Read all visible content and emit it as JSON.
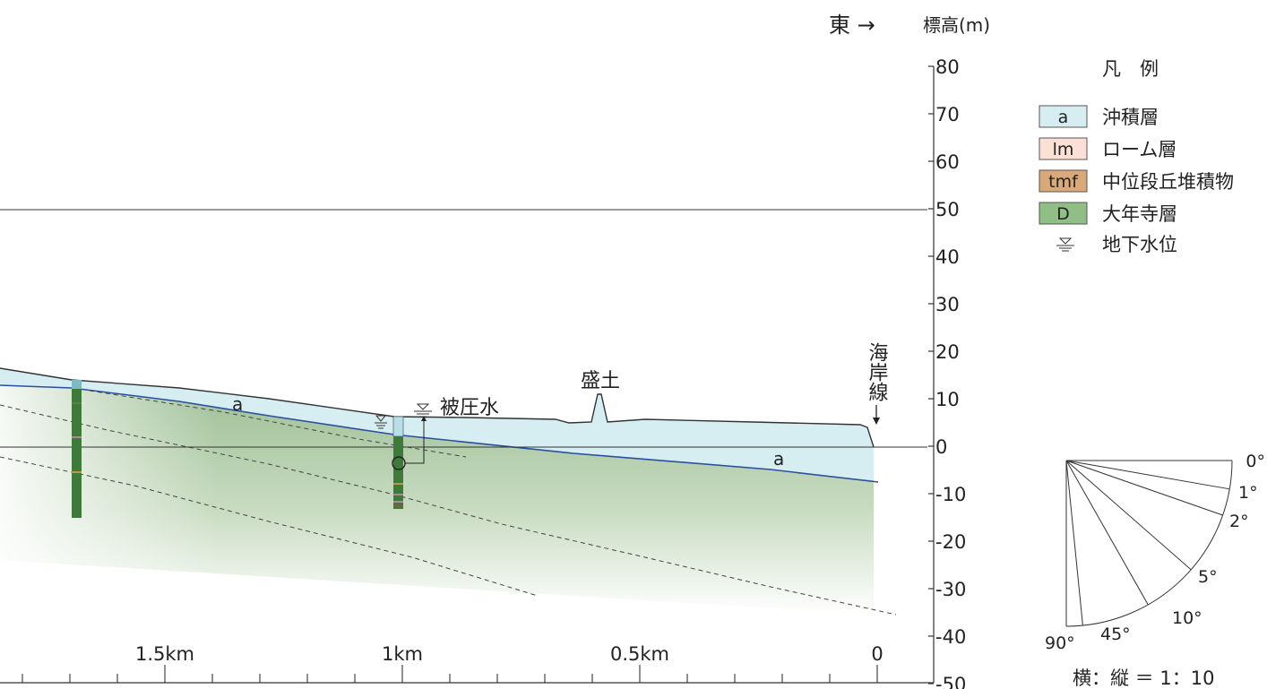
{
  "header": {
    "direction": "東 →",
    "elevation_axis_title": "標高(m)"
  },
  "elevation_axis": {
    "ticks": [
      80,
      70,
      60,
      50,
      40,
      30,
      20,
      10,
      0,
      -10,
      -20,
      -30,
      -40,
      -50
    ]
  },
  "distance_axis": {
    "labels": [
      {
        "value": 1.5,
        "text": "1.5km"
      },
      {
        "value": 1.0,
        "text": "1km"
      },
      {
        "value": 0.5,
        "text": "0.5km"
      },
      {
        "value": 0,
        "text": "0"
      }
    ]
  },
  "legend": {
    "title": "凡　例",
    "items": [
      {
        "code": "a",
        "label": "沖積層",
        "fill": "#d6eef2"
      },
      {
        "code": "lm",
        "label": "ローム層",
        "fill": "#fbe0d6"
      },
      {
        "code": "tmf",
        "label": "中位段丘堆積物",
        "fill": "#d9a97a"
      },
      {
        "code": "D",
        "label": "大年寺層",
        "fill": "#8fbf84"
      }
    ],
    "water_table_label": "地下水位"
  },
  "annotations": {
    "alluvium_label_1": "a",
    "alluvium_label_2": "a",
    "fill_label": "盛土",
    "confined_water_label": "被圧水",
    "coastline_label": "海岸線"
  },
  "dip_scale": {
    "angles": [
      "0°",
      "1°",
      "2°",
      "5°",
      "10°",
      "45°",
      "90°"
    ],
    "ratio_text": "横：縦 ＝ 1：10"
  },
  "colors": {
    "alluvium": "#d6eef2",
    "taineiji_top": "#9dbf94",
    "taineiji_fade": "#ffffff",
    "boundary_line": "#2a4fa0"
  }
}
